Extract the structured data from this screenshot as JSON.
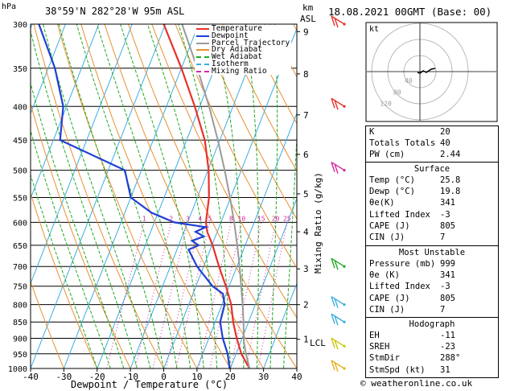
{
  "header": {
    "pressure_unit": "hPa",
    "location": "38°59'N  282°28'W  95m  ASL",
    "km_label": "km",
    "asl_label": "ASL",
    "datetime": "18.08.2021  00GMT  (Base: 00)"
  },
  "legend": [
    {
      "label": "Temperature",
      "color": "#e8312a"
    },
    {
      "label": "Dewpoint",
      "color": "#1f3fd6"
    },
    {
      "label": "Parcel Trajectory",
      "color": "#9a9a9a"
    },
    {
      "label": "Dry Adiabat",
      "color": "#e89030"
    },
    {
      "label": "Wet Adiabat",
      "color": "#22aa22"
    },
    {
      "label": "Isotherm",
      "color": "#3aaee0"
    },
    {
      "label": "Mixing Ratio",
      "color": "#d42aa0"
    }
  ],
  "colors": {
    "temperature": "#e8312a",
    "dewpoint": "#1f3fd6",
    "parcel": "#9a9a9a",
    "dry_adiabat": "#e89030",
    "wet_adiabat": "#22aa22",
    "isotherm": "#3aaee0",
    "mixing_ratio": "#d42aa0"
  },
  "chart_data": {
    "type": "line",
    "title": "",
    "xlabel": "Dewpoint / Temperature (°C)",
    "ylabel": "",
    "right_axis_label": "Mixing Ratio (g/kg)",
    "xlim": [
      -40,
      40
    ],
    "ylim": [
      1000,
      300
    ],
    "y_scale": "log",
    "x_ticks": [
      "-40",
      "-30",
      "-20",
      "-10",
      "0",
      "10",
      "20",
      "30",
      "40"
    ],
    "pressure_levels": [
      300,
      350,
      400,
      450,
      500,
      550,
      600,
      650,
      700,
      750,
      800,
      850,
      900,
      950,
      1000
    ],
    "height_ticks_km": [
      {
        "label": "9",
        "p": 308
      },
      {
        "label": "8",
        "p": 357
      },
      {
        "label": "7",
        "p": 412
      },
      {
        "label": "6",
        "p": 473
      },
      {
        "label": "5",
        "p": 543
      },
      {
        "label": "4",
        "p": 620
      },
      {
        "label": "3",
        "p": 706
      },
      {
        "label": "2",
        "p": 800
      },
      {
        "label": "1",
        "p": 903
      }
    ],
    "lcl_label": "LCL",
    "lcl_p": 912,
    "mixing_ratio_labels": [
      "1",
      "2",
      "3",
      "4",
      "5",
      "8",
      "10",
      "15",
      "20",
      "25"
    ],
    "mixing_ratio_values": [
      1,
      2,
      3,
      4,
      5,
      8,
      10,
      15,
      20,
      25
    ],
    "series": [
      {
        "name": "Temperature",
        "points": [
          [
            1000,
            25.8
          ],
          [
            950,
            21.6
          ],
          [
            900,
            18.4
          ],
          [
            850,
            15.4
          ],
          [
            800,
            12.8
          ],
          [
            750,
            9.0
          ],
          [
            700,
            4.6
          ],
          [
            650,
            0.2
          ],
          [
            620,
            -3.0
          ],
          [
            600,
            -4.5
          ],
          [
            550,
            -6.5
          ],
          [
            500,
            -9.8
          ],
          [
            450,
            -14.5
          ],
          [
            400,
            -21.5
          ],
          [
            350,
            -30.0
          ],
          [
            300,
            -40.5
          ]
        ]
      },
      {
        "name": "Dewpoint",
        "points": [
          [
            1000,
            19.8
          ],
          [
            950,
            17.5
          ],
          [
            900,
            14.2
          ],
          [
            850,
            11.5
          ],
          [
            800,
            10.8
          ],
          [
            770,
            9.0
          ],
          [
            750,
            5.0
          ],
          [
            700,
            -2.0
          ],
          [
            660,
            -6.5
          ],
          [
            650,
            -4.0
          ],
          [
            640,
            -6.5
          ],
          [
            630,
            -3.5
          ],
          [
            620,
            -6.5
          ],
          [
            610,
            -4.0
          ],
          [
            600,
            -14.0
          ],
          [
            580,
            -22.0
          ],
          [
            550,
            -30.0
          ],
          [
            500,
            -35.0
          ],
          [
            450,
            -58.0
          ],
          [
            400,
            -61.0
          ],
          [
            350,
            -68.0
          ],
          [
            300,
            -78.0
          ]
        ]
      },
      {
        "name": "Parcel Trajectory",
        "points": [
          [
            1000,
            25.8
          ],
          [
            950,
            23.0
          ],
          [
            912,
            21.0
          ],
          [
            850,
            18.5
          ],
          [
            800,
            16.2
          ],
          [
            750,
            13.6
          ],
          [
            700,
            10.8
          ],
          [
            650,
            7.6
          ],
          [
            600,
            4.0
          ],
          [
            550,
            -0.2
          ],
          [
            500,
            -5.0
          ],
          [
            450,
            -10.6
          ],
          [
            400,
            -17.2
          ],
          [
            350,
            -25.2
          ],
          [
            300,
            -35.0
          ]
        ]
      }
    ]
  },
  "wind_barbs": [
    {
      "p": 300,
      "color": "#e8312a"
    },
    {
      "p": 400,
      "color": "#e8312a"
    },
    {
      "p": 500,
      "color": "#d42aa0"
    },
    {
      "p": 700,
      "color": "#22aa22"
    },
    {
      "p": 800,
      "color": "#3aaee0"
    },
    {
      "p": 850,
      "color": "#3aaee0"
    },
    {
      "p": 925,
      "color": "#c8c800"
    },
    {
      "p": 1000,
      "color": "#e8b020"
    }
  ],
  "hodograph": {
    "kt_label": "kt",
    "ring_labels": [
      "40",
      "80",
      "120"
    ]
  },
  "indices": [
    {
      "label": "K",
      "value": "20"
    },
    {
      "label": "Totals Totals",
      "value": "40"
    },
    {
      "label": "PW (cm)",
      "value": "2.44"
    }
  ],
  "surface": {
    "title": "Surface",
    "rows": [
      {
        "label": "Temp (°C)",
        "value": "25.8"
      },
      {
        "label": "Dewp (°C)",
        "value": "19.8"
      },
      {
        "label": "θe(K)",
        "value": "341"
      },
      {
        "label": "Lifted Index",
        "value": "-3"
      },
      {
        "label": "CAPE (J)",
        "value": "805"
      },
      {
        "label": "CIN (J)",
        "value": "7"
      }
    ]
  },
  "most_unstable": {
    "title": "Most Unstable",
    "rows": [
      {
        "label": "Pressure (mb)",
        "value": "999"
      },
      {
        "label": "θe (K)",
        "value": "341"
      },
      {
        "label": "Lifted Index",
        "value": "-3"
      },
      {
        "label": "CAPE (J)",
        "value": "805"
      },
      {
        "label": "CIN (J)",
        "value": "7"
      }
    ]
  },
  "hodograph_table": {
    "title": "Hodograph",
    "rows": [
      {
        "label": "EH",
        "value": "-11"
      },
      {
        "label": "SREH",
        "value": "-23"
      },
      {
        "label": "StmDir",
        "value": "288°"
      },
      {
        "label": "StmSpd (kt)",
        "value": "31"
      }
    ]
  },
  "footer": "© weatheronline.co.uk"
}
